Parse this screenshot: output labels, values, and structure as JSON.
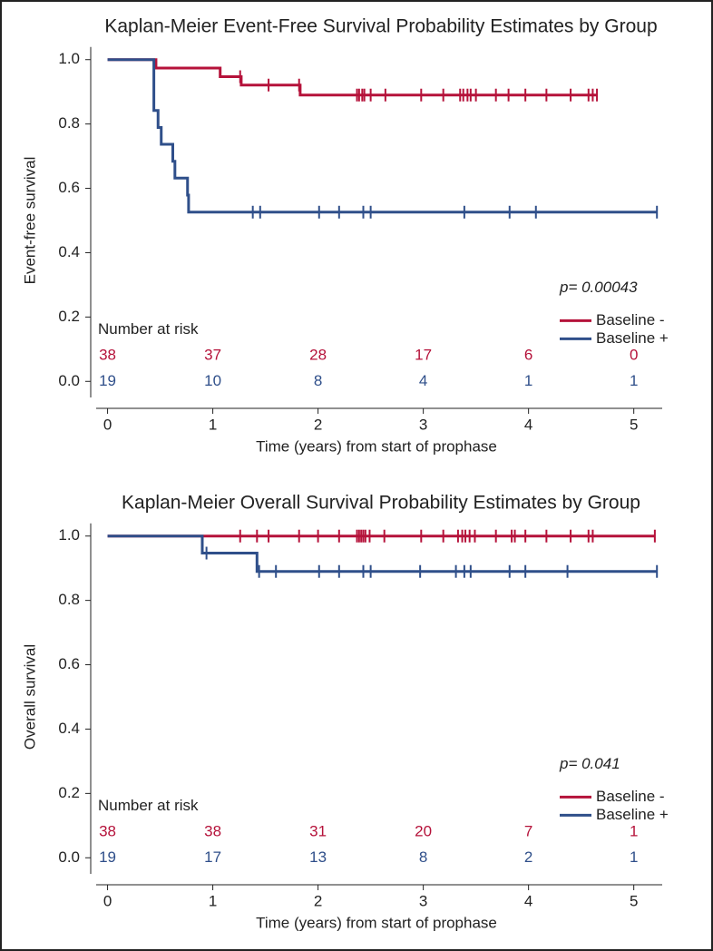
{
  "chart_data": [
    {
      "type": "step",
      "title": "Kaplan-Meier Event-Free Survival Probability Estimates by Group",
      "xlabel": "Time (years) from start of prophase",
      "ylabel": "Event-free survival",
      "xlim": [
        -0.16,
        5.27
      ],
      "ylim": [
        -0.05,
        1.05
      ],
      "xticks": [
        0,
        1,
        2,
        3,
        4,
        5
      ],
      "yticks": [
        {
          "value": 0,
          "label": "0.0"
        },
        {
          "value": 0.2,
          "label": "0.2"
        },
        {
          "value": 0.4,
          "label": "0.4"
        },
        {
          "value": 0.6,
          "label": "0.6"
        },
        {
          "value": 0.8,
          "label": "0.8"
        },
        {
          "value": 1,
          "label": "1.0"
        }
      ],
      "annotation": "p= 0.00043",
      "series": [
        {
          "name": "Baseline -",
          "color": "#b5123a",
          "x": [
            0,
            0.46,
            1.07,
            1.27,
            1.83,
            4.65
          ],
          "values": [
            1,
            0.974,
            0.947,
            0.921,
            0.89,
            0.89
          ],
          "censor": [
            1.26,
            1.53,
            1.82,
            2.37,
            2.39,
            2.42,
            2.44,
            2.5,
            2.64,
            2.98,
            3.19,
            3.35,
            3.38,
            3.42,
            3.45,
            3.5,
            3.69,
            3.81,
            3.97,
            4.17,
            4.4,
            4.57,
            4.61,
            4.65
          ]
        },
        {
          "name": "Baseline +",
          "color": "#2f4f8a",
          "x": [
            0,
            0.44,
            0.48,
            0.51,
            0.62,
            0.64,
            0.76,
            0.77,
            5.22
          ],
          "values": [
            1,
            0.842,
            0.789,
            0.737,
            0.684,
            0.632,
            0.579,
            0.526,
            0.526
          ],
          "censor": [
            1.38,
            1.45,
            2.01,
            2.2,
            2.43,
            2.5,
            3.39,
            3.82,
            4.07,
            5.22
          ]
        }
      ],
      "risk_table": {
        "label": "Number at risk",
        "counts": [
          [
            38,
            37,
            28,
            17,
            6,
            0
          ],
          [
            19,
            10,
            8,
            4,
            1,
            1
          ]
        ]
      }
    },
    {
      "type": "step",
      "title": "Kaplan-Meier Overall Survival Probability Estimates by Group",
      "xlabel": "Time (years) from start of prophase",
      "ylabel": "Overall survival",
      "xlim": [
        -0.16,
        5.27
      ],
      "ylim": [
        -0.05,
        1.05
      ],
      "xticks": [
        0,
        1,
        2,
        3,
        4,
        5
      ],
      "yticks": [
        {
          "value": 0,
          "label": "0.0"
        },
        {
          "value": 0.2,
          "label": "0.2"
        },
        {
          "value": 0.4,
          "label": "0.4"
        },
        {
          "value": 0.6,
          "label": "0.6"
        },
        {
          "value": 0.8,
          "label": "0.8"
        },
        {
          "value": 1,
          "label": "1.0"
        }
      ],
      "annotation": "p= 0.041",
      "series": [
        {
          "name": "Baseline -",
          "color": "#b5123a",
          "x": [
            0,
            5.2
          ],
          "values": [
            1,
            1
          ],
          "censor": [
            1.26,
            1.42,
            1.53,
            1.82,
            2.0,
            2.2,
            2.37,
            2.39,
            2.41,
            2.43,
            2.45,
            2.49,
            2.63,
            2.98,
            3.19,
            3.33,
            3.37,
            3.4,
            3.44,
            3.49,
            3.69,
            3.84,
            3.87,
            3.97,
            4.17,
            4.4,
            4.57,
            4.61,
            5.2
          ]
        },
        {
          "name": "Baseline +",
          "color": "#2f4f8a",
          "x": [
            0,
            0.9,
            1.42,
            5.22
          ],
          "values": [
            1,
            0.947,
            0.89,
            0.89
          ],
          "censor": [
            0.94,
            1.44,
            1.6,
            2.01,
            2.2,
            2.43,
            2.5,
            2.97,
            3.31,
            3.39,
            3.45,
            3.82,
            3.97,
            4.37,
            5.22
          ]
        }
      ],
      "risk_table": {
        "label": "Number at risk",
        "counts": [
          [
            38,
            38,
            31,
            20,
            7,
            1
          ],
          [
            19,
            17,
            13,
            8,
            2,
            1
          ]
        ]
      }
    }
  ]
}
